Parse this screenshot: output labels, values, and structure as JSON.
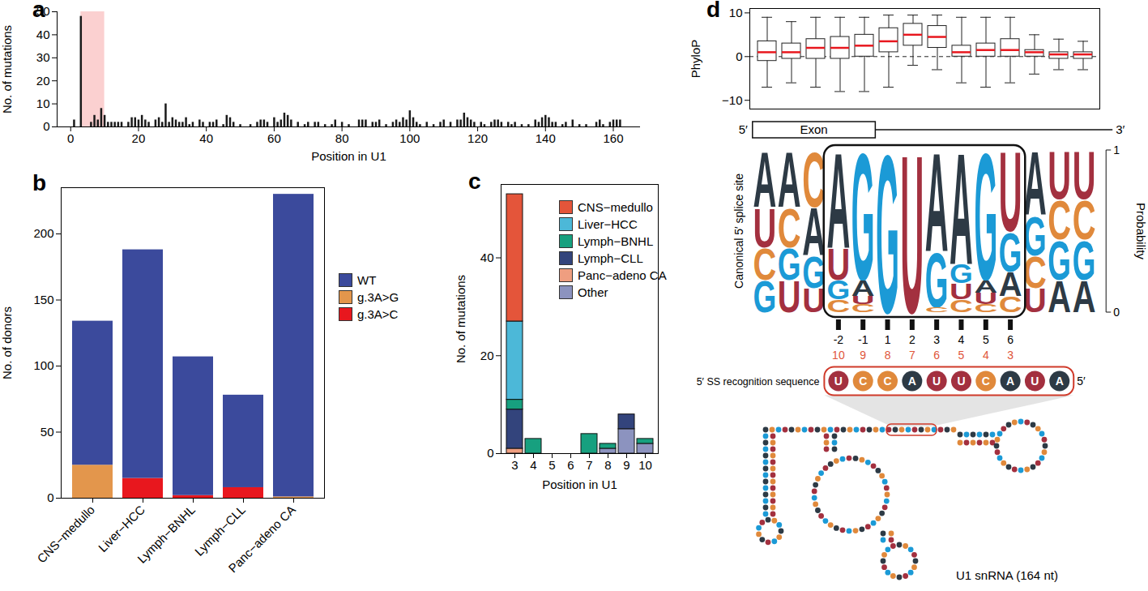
{
  "chart_data": [
    {
      "panel": "a",
      "type": "bar",
      "xlabel": "Position in U1",
      "ylabel": "No. of mutations",
      "color": "#1a1a1a",
      "x": [
        1,
        3,
        6,
        7,
        8,
        9,
        10,
        11,
        12,
        13,
        14,
        15,
        17,
        18,
        19,
        20,
        21,
        22,
        23,
        25,
        26,
        27,
        28,
        29,
        30,
        31,
        32,
        33,
        34,
        35,
        36,
        38,
        39,
        41,
        42,
        43,
        45,
        46,
        47,
        48,
        50,
        53,
        55,
        56,
        57,
        58,
        60,
        61,
        62,
        63,
        64,
        65,
        67,
        69,
        70,
        72,
        73,
        75,
        77,
        78,
        80,
        82,
        85,
        86,
        87,
        89,
        90,
        91,
        93,
        95,
        96,
        97,
        98,
        99,
        100,
        101,
        102,
        103,
        105,
        107,
        109,
        110,
        112,
        114,
        115,
        116,
        117,
        118,
        119,
        121,
        122,
        124,
        125,
        126,
        127,
        129,
        130,
        131,
        133,
        135,
        137,
        138,
        139,
        140,
        141,
        142,
        143,
        145,
        146,
        148,
        150,
        152,
        155,
        156,
        157,
        159,
        160,
        161,
        162
      ],
      "values": [
        3,
        48,
        2,
        5,
        3,
        8,
        5,
        2,
        2,
        2,
        2,
        2,
        2,
        4,
        4,
        3,
        5,
        3,
        2,
        3,
        4,
        2,
        10,
        2,
        4,
        3,
        2,
        2,
        4,
        1,
        2,
        3,
        2,
        2,
        2,
        3,
        1,
        5,
        4,
        2,
        1,
        1,
        2,
        3,
        3,
        2,
        4,
        2,
        3,
        6,
        5,
        3,
        2,
        1,
        2,
        2,
        2,
        1,
        1,
        3,
        2,
        1,
        3,
        3,
        3,
        2,
        2,
        3,
        1,
        2,
        3,
        2,
        4,
        3,
        7,
        4,
        2,
        1,
        2,
        1,
        2,
        3,
        2,
        3,
        3,
        6,
        4,
        3,
        2,
        2,
        1,
        2,
        3,
        3,
        2,
        2,
        1,
        2,
        1,
        1,
        3,
        2,
        4,
        5,
        4,
        2,
        2,
        1,
        2,
        3,
        1,
        1,
        2,
        3,
        1,
        2,
        3,
        3,
        3
      ],
      "shaded_region": {
        "x": [
          3,
          10
        ],
        "color": "#fbd0d0"
      },
      "xlim": [
        -4,
        168
      ],
      "xticks": [
        0,
        20,
        40,
        60,
        80,
        100,
        120,
        140,
        160
      ],
      "ylim": [
        0,
        50
      ],
      "yticks": [
        0,
        10,
        20,
        30,
        40,
        50
      ]
    },
    {
      "panel": "b",
      "type": "bar",
      "stacked": true,
      "ylabel": "No. of donors",
      "legend": "right",
      "categories": [
        "CNS−medullo",
        "Liver−HCC",
        "Lymph−BNHL",
        "Lymph−CLL",
        "Panc−adeno CA"
      ],
      "series": [
        {
          "name": "WT",
          "color": "#3b4a9c",
          "values": [
            109,
            173,
            105,
            70,
            229
          ]
        },
        {
          "name": "g.3A>G",
          "color": "#e3964c",
          "values": [
            25,
            0,
            0,
            0,
            1
          ]
        },
        {
          "name": "g.3A>C",
          "color": "#e8171e",
          "values": [
            0,
            15,
            2,
            8,
            0
          ]
        }
      ],
      "ylim": [
        0,
        235
      ],
      "yticks": [
        0,
        50,
        100,
        150,
        200
      ]
    },
    {
      "panel": "c",
      "type": "bar",
      "stacked": true,
      "xlabel": "Position in U1",
      "ylabel": "No. of mutations",
      "legend": "top-right",
      "categories": [
        3,
        4,
        5,
        6,
        7,
        8,
        9,
        10
      ],
      "series": [
        {
          "name": "CNS−medullo",
          "color": "#e4553a",
          "values": [
            26,
            0,
            0,
            0,
            0,
            0,
            0,
            0
          ]
        },
        {
          "name": "Liver−HCC",
          "color": "#4cb8d8",
          "values": [
            16,
            0,
            0,
            0,
            0,
            0,
            0,
            0
          ]
        },
        {
          "name": "Lymph−BNHL",
          "color": "#17a07f",
          "values": [
            2,
            3,
            0,
            0,
            4,
            1,
            0,
            1
          ]
        },
        {
          "name": "Lymph−CLL",
          "color": "#33447c",
          "values": [
            8,
            0,
            0,
            0,
            0,
            0,
            3,
            0
          ]
        },
        {
          "name": "Panc−adeno CA",
          "color": "#ef9e80",
          "values": [
            1,
            0,
            0,
            0,
            0,
            0,
            0,
            0
          ]
        },
        {
          "name": "Other",
          "color": "#8c93bf",
          "values": [
            0,
            0,
            0,
            0,
            0,
            1,
            5,
            2
          ]
        }
      ],
      "ylim": [
        0,
        55
      ],
      "yticks": [
        0,
        20,
        40
      ]
    },
    {
      "panel": "d",
      "type": "box",
      "ylabel": "PhyloP",
      "tick_labels": "y",
      "reference_line": 0,
      "median_color": "#e8171e",
      "boxes": [
        {
          "whisker_low": -7,
          "q1": -1,
          "median": 1,
          "q3": 3.5,
          "whisker_high": 9
        },
        {
          "whisker_low": -6,
          "q1": -0.5,
          "median": 1,
          "q3": 3,
          "whisker_high": 8
        },
        {
          "whisker_low": -7,
          "q1": -0.5,
          "median": 2,
          "q3": 4,
          "whisker_high": 9
        },
        {
          "whisker_low": -8,
          "q1": -0.5,
          "median": 2,
          "q3": 4.5,
          "whisker_high": 9
        },
        {
          "whisker_low": -8,
          "q1": 0,
          "median": 2.5,
          "q3": 5,
          "whisker_high": 9
        },
        {
          "whisker_low": -7,
          "q1": 1,
          "median": 3.5,
          "q3": 6.5,
          "whisker_high": 9.5
        },
        {
          "whisker_low": -2,
          "q1": 2.5,
          "median": 5,
          "q3": 7.5,
          "whisker_high": 9.5
        },
        {
          "whisker_low": -3,
          "q1": 2,
          "median": 4.5,
          "q3": 7,
          "whisker_high": 9.5
        },
        {
          "whisker_low": -6,
          "q1": 0,
          "median": 1,
          "q3": 2.5,
          "whisker_high": 9
        },
        {
          "whisker_low": -7,
          "q1": 0,
          "median": 1.5,
          "q3": 3,
          "whisker_high": 9
        },
        {
          "whisker_low": -6,
          "q1": 0,
          "median": 1.5,
          "q3": 4,
          "whisker_high": 9
        },
        {
          "whisker_low": -4,
          "q1": 0,
          "median": 1,
          "q3": 1.5,
          "whisker_high": 5
        },
        {
          "whisker_low": -3,
          "q1": -0.5,
          "median": 0.5,
          "q3": 1,
          "whisker_high": 4
        },
        {
          "whisker_low": -3,
          "q1": -0.5,
          "median": 0.5,
          "q3": 1,
          "whisker_high": 3.5
        }
      ],
      "ylim": [
        -12,
        11
      ],
      "yticks": [
        -10,
        0,
        10
      ]
    }
  ],
  "diagram": {
    "exon_label": "Exon",
    "five_prime": "5′",
    "three_prime": "3′",
    "logo": {
      "ylabel": "Canonical 5′ splice site",
      "axis_label": "Probability",
      "ylim": [
        0,
        1
      ],
      "yticks": [
        0,
        1
      ],
      "colors": {
        "A": "#2d3a45",
        "C": "#e0893b",
        "G": "#1b9ad6",
        "U": "#a3303f"
      },
      "columns": [
        {
          "position": null,
          "u1_position": null,
          "exon": true,
          "letters": [
            [
              "A",
              0.35
            ],
            [
              "U",
              0.25
            ],
            [
              "C",
              0.2
            ],
            [
              "G",
              0.2
            ]
          ]
        },
        {
          "position": null,
          "u1_position": null,
          "exon": true,
          "letters": [
            [
              "A",
              0.35
            ],
            [
              "C",
              0.25
            ],
            [
              "G",
              0.2
            ],
            [
              "U",
              0.2
            ]
          ]
        },
        {
          "position": null,
          "u1_position": null,
          "exon": true,
          "letters": [
            [
              "C",
              0.35
            ],
            [
              "A",
              0.3
            ],
            [
              "G",
              0.2
            ],
            [
              "U",
              0.15
            ]
          ]
        },
        {
          "position": -2,
          "u1_position": 10,
          "exon": true,
          "letters": [
            [
              "A",
              0.6
            ],
            [
              "U",
              0.2
            ],
            [
              "G",
              0.12
            ],
            [
              "C",
              0.08
            ]
          ]
        },
        {
          "position": -1,
          "u1_position": 9,
          "exon": true,
          "letters": [
            [
              "G",
              0.8
            ],
            [
              "A",
              0.1
            ],
            [
              "U",
              0.05
            ],
            [
              "C",
              0.05
            ]
          ]
        },
        {
          "position": 1,
          "u1_position": 8,
          "exon": false,
          "letters": [
            [
              "G",
              1
            ]
          ]
        },
        {
          "position": 2,
          "u1_position": 7,
          "exon": false,
          "letters": [
            [
              "U",
              1
            ]
          ]
        },
        {
          "position": 3,
          "u1_position": 6,
          "exon": false,
          "letters": [
            [
              "A",
              0.62
            ],
            [
              "G",
              0.35
            ],
            [
              "C",
              0.03
            ]
          ]
        },
        {
          "position": 4,
          "u1_position": 5,
          "exon": false,
          "letters": [
            [
              "A",
              0.7
            ],
            [
              "G",
              0.12
            ],
            [
              "U",
              0.1
            ],
            [
              "C",
              0.08
            ]
          ]
        },
        {
          "position": 5,
          "u1_position": 4,
          "exon": false,
          "letters": [
            [
              "G",
              0.8
            ],
            [
              "A",
              0.08
            ],
            [
              "U",
              0.07
            ],
            [
              "C",
              0.05
            ]
          ]
        },
        {
          "position": 6,
          "u1_position": 3,
          "exon": false,
          "letters": [
            [
              "U",
              0.5
            ],
            [
              "G",
              0.25
            ],
            [
              "A",
              0.15
            ],
            [
              "C",
              0.1
            ]
          ]
        },
        {
          "position": null,
          "u1_position": null,
          "exon": false,
          "letters": [
            [
              "A",
              0.4
            ],
            [
              "G",
              0.25
            ],
            [
              "C",
              0.2
            ],
            [
              "U",
              0.15
            ]
          ]
        },
        {
          "position": null,
          "u1_position": null,
          "exon": false,
          "letters": [
            [
              "U",
              0.3
            ],
            [
              "C",
              0.25
            ],
            [
              "G",
              0.25
            ],
            [
              "A",
              0.2
            ]
          ]
        },
        {
          "position": null,
          "u1_position": null,
          "exon": false,
          "letters": [
            [
              "U",
              0.3
            ],
            [
              "C",
              0.25
            ],
            [
              "G",
              0.25
            ],
            [
              "A",
              0.2
            ]
          ]
        }
      ]
    },
    "u1_position_color": "#e0553a",
    "recognition": {
      "label": "5′ SS recognition sequence",
      "sequence": [
        "U",
        "C",
        "C",
        "A",
        "U",
        "U",
        "C",
        "A",
        "U",
        "A"
      ],
      "end": "5′",
      "color": "#d03a2a"
    },
    "structure_label": "U1 snRNA (164 nt)"
  }
}
